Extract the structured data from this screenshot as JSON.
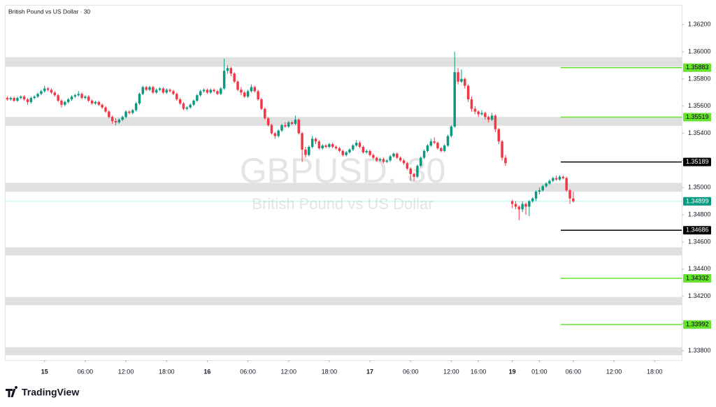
{
  "chart_data": {
    "type": "candlestick",
    "title": "British Pound vs US Dollar · 30",
    "watermark": "GBPUSD, 30",
    "watermark_subtitle": "British Pound vs US Dollar",
    "brand": "TradingView",
    "up_color": "#089981",
    "down_color": "#f23645",
    "ylim": [
      1.3373,
      1.3634
    ],
    "yticks": [
      {
        "value": 1.362,
        "label": "1.36200"
      },
      {
        "value": 1.36,
        "label": "1.36000"
      },
      {
        "value": 1.358,
        "label": "1.35800"
      },
      {
        "value": 1.356,
        "label": "1.35600"
      },
      {
        "value": 1.354,
        "label": "1.35400"
      },
      {
        "value": 1.352,
        "label": "1.35200"
      },
      {
        "value": 1.35,
        "label": "1.35000"
      },
      {
        "value": 1.348,
        "label": "1.34800"
      },
      {
        "value": 1.346,
        "label": "1.34600"
      },
      {
        "value": 1.344,
        "label": "1.34400"
      },
      {
        "value": 1.342,
        "label": "1.34200"
      },
      {
        "value": 1.34,
        "label": "1.34000"
      },
      {
        "value": 1.338,
        "label": "1.33800"
      }
    ],
    "xlim": [
      -0.5,
      199
    ],
    "xticks": [
      {
        "value": 11,
        "label": "15"
      },
      {
        "value": 23,
        "label": "06:00"
      },
      {
        "value": 35,
        "label": "12:00"
      },
      {
        "value": 47,
        "label": "18:00"
      },
      {
        "value": 59,
        "label": "16"
      },
      {
        "value": 71,
        "label": "06:00"
      },
      {
        "value": 83,
        "label": "12:00"
      },
      {
        "value": 95,
        "label": "18:00"
      },
      {
        "value": 107,
        "label": "17"
      },
      {
        "value": 119,
        "label": "06:00"
      },
      {
        "value": 131,
        "label": "12:00"
      },
      {
        "value": 139,
        "label": "16:00"
      },
      {
        "value": 149,
        "label": "19"
      },
      {
        "value": 157,
        "label": "01:00"
      },
      {
        "value": 167,
        "label": "06:00"
      },
      {
        "value": 179,
        "label": "12:00"
      },
      {
        "value": 191,
        "label": "18:00"
      }
    ],
    "zones": [
      [
        1.3596,
        1.3589
      ],
      [
        1.3552,
        1.35455
      ],
      [
        1.35035,
        1.3497
      ],
      [
        1.3456,
        1.345
      ],
      [
        1.34195,
        1.34135
      ],
      [
        1.33825,
        1.33765
      ]
    ],
    "zone_color": "#e0e0e0",
    "levels": [
      {
        "value": 1.35883,
        "color": "#66e22f"
      },
      {
        "value": 1.35519,
        "color": "#66e22f"
      },
      {
        "value": 1.35189,
        "color": "#000000"
      },
      {
        "value": 1.34686,
        "color": "#000000"
      },
      {
        "value": 1.34332,
        "color": "#66e22f"
      },
      {
        "value": 1.33992,
        "color": "#66e22f"
      }
    ],
    "last_price": 1.34899,
    "candles": [
      [
        1.3566,
        1.3567,
        1.3564,
        1.3565
      ],
      [
        1.3565,
        1.3567,
        1.3564,
        1.3566
      ],
      [
        1.3566,
        1.3567,
        1.3563,
        1.3564
      ],
      [
        1.3564,
        1.3567,
        1.3563,
        1.3566
      ],
      [
        1.3566,
        1.3568,
        1.3565,
        1.3567
      ],
      [
        1.3567,
        1.3568,
        1.3564,
        1.3565
      ],
      [
        1.3565,
        1.3566,
        1.3561,
        1.3563
      ],
      [
        1.3563,
        1.3567,
        1.3562,
        1.3566
      ],
      [
        1.3566,
        1.3568,
        1.3565,
        1.3567
      ],
      [
        1.3567,
        1.357,
        1.3566,
        1.3569
      ],
      [
        1.3569,
        1.3572,
        1.3568,
        1.3571
      ],
      [
        1.3571,
        1.3575,
        1.357,
        1.3573
      ],
      [
        1.3573,
        1.3574,
        1.3571,
        1.3572
      ],
      [
        1.3572,
        1.3573,
        1.3569,
        1.357
      ],
      [
        1.357,
        1.3571,
        1.3567,
        1.3568
      ],
      [
        1.3568,
        1.3569,
        1.3563,
        1.3564
      ],
      [
        1.3564,
        1.3565,
        1.3559,
        1.3561
      ],
      [
        1.3561,
        1.3564,
        1.356,
        1.3563
      ],
      [
        1.3563,
        1.3566,
        1.3562,
        1.3565
      ],
      [
        1.3565,
        1.3568,
        1.3564,
        1.3567
      ],
      [
        1.3567,
        1.3569,
        1.3566,
        1.3568
      ],
      [
        1.3568,
        1.3571,
        1.3567,
        1.3569
      ],
      [
        1.3569,
        1.357,
        1.3565,
        1.3566
      ],
      [
        1.3566,
        1.3568,
        1.3565,
        1.3567
      ],
      [
        1.3567,
        1.3568,
        1.3563,
        1.3564
      ],
      [
        1.3564,
        1.3565,
        1.3561,
        1.3562
      ],
      [
        1.3562,
        1.3564,
        1.3561,
        1.3563
      ],
      [
        1.3563,
        1.3564,
        1.356,
        1.3561
      ],
      [
        1.3561,
        1.3562,
        1.3558,
        1.3559
      ],
      [
        1.3559,
        1.356,
        1.3555,
        1.3556
      ],
      [
        1.3556,
        1.3557,
        1.3551,
        1.3552
      ],
      [
        1.3552,
        1.3553,
        1.3547,
        1.3549
      ],
      [
        1.3549,
        1.3551,
        1.3546,
        1.3548
      ],
      [
        1.3548,
        1.3551,
        1.3547,
        1.355
      ],
      [
        1.355,
        1.3553,
        1.3549,
        1.3552
      ],
      [
        1.3552,
        1.3557,
        1.3551,
        1.3556
      ],
      [
        1.3556,
        1.3557,
        1.3554,
        1.3555
      ],
      [
        1.3555,
        1.3558,
        1.3554,
        1.3557
      ],
      [
        1.3557,
        1.3563,
        1.3556,
        1.3562
      ],
      [
        1.3562,
        1.357,
        1.3561,
        1.3569
      ],
      [
        1.3569,
        1.3575,
        1.3568,
        1.3574
      ],
      [
        1.3574,
        1.3575,
        1.3571,
        1.3572
      ],
      [
        1.3572,
        1.3575,
        1.3571,
        1.3574
      ],
      [
        1.3574,
        1.3575,
        1.3569,
        1.357
      ],
      [
        1.357,
        1.3573,
        1.3569,
        1.3572
      ],
      [
        1.3572,
        1.3574,
        1.3571,
        1.3573
      ],
      [
        1.3573,
        1.3574,
        1.3569,
        1.357
      ],
      [
        1.357,
        1.3573,
        1.3569,
        1.3572
      ],
      [
        1.3572,
        1.3573,
        1.357,
        1.3571
      ],
      [
        1.3571,
        1.3572,
        1.3568,
        1.3569
      ],
      [
        1.3569,
        1.357,
        1.3564,
        1.3565
      ],
      [
        1.3565,
        1.3566,
        1.3561,
        1.3562
      ],
      [
        1.3562,
        1.3563,
        1.3557,
        1.3558
      ],
      [
        1.3558,
        1.356,
        1.3557,
        1.3559
      ],
      [
        1.3559,
        1.3562,
        1.3558,
        1.3561
      ],
      [
        1.3561,
        1.3565,
        1.356,
        1.3564
      ],
      [
        1.3564,
        1.3569,
        1.3563,
        1.3568
      ],
      [
        1.3568,
        1.3572,
        1.3567,
        1.3571
      ],
      [
        1.3571,
        1.3573,
        1.357,
        1.3572
      ],
      [
        1.3572,
        1.3573,
        1.3569,
        1.357
      ],
      [
        1.357,
        1.3573,
        1.3569,
        1.3572
      ],
      [
        1.3572,
        1.3573,
        1.357,
        1.3571
      ],
      [
        1.3571,
        1.3572,
        1.3568,
        1.3569
      ],
      [
        1.3569,
        1.3574,
        1.3568,
        1.3573
      ],
      [
        1.3573,
        1.3595,
        1.3572,
        1.3586
      ],
      [
        1.3586,
        1.359,
        1.3584,
        1.3588
      ],
      [
        1.3588,
        1.3589,
        1.3582,
        1.3584
      ],
      [
        1.3584,
        1.3585,
        1.3577,
        1.3578
      ],
      [
        1.3578,
        1.3579,
        1.3571,
        1.3572
      ],
      [
        1.3572,
        1.3574,
        1.3568,
        1.357
      ],
      [
        1.357,
        1.3571,
        1.3566,
        1.3567
      ],
      [
        1.3567,
        1.3572,
        1.3566,
        1.3571
      ],
      [
        1.3571,
        1.3576,
        1.357,
        1.3574
      ],
      [
        1.3574,
        1.3575,
        1.357,
        1.3571
      ],
      [
        1.3571,
        1.3572,
        1.3564,
        1.3565
      ],
      [
        1.3565,
        1.3566,
        1.3557,
        1.3558
      ],
      [
        1.3558,
        1.3559,
        1.355,
        1.3551
      ],
      [
        1.3551,
        1.3552,
        1.3545,
        1.3546
      ],
      [
        1.3546,
        1.3547,
        1.3539,
        1.354
      ],
      [
        1.354,
        1.3541,
        1.3536,
        1.3538
      ],
      [
        1.3538,
        1.3543,
        1.3537,
        1.3542
      ],
      [
        1.3542,
        1.3547,
        1.3541,
        1.3546
      ],
      [
        1.3546,
        1.3548,
        1.3544,
        1.3545
      ],
      [
        1.3545,
        1.3549,
        1.3544,
        1.3548
      ],
      [
        1.3548,
        1.3549,
        1.3546,
        1.3547
      ],
      [
        1.3547,
        1.3553,
        1.3546,
        1.355
      ],
      [
        1.355,
        1.3551,
        1.3539,
        1.354
      ],
      [
        1.354,
        1.3541,
        1.3519,
        1.3528
      ],
      [
        1.3528,
        1.353,
        1.3522,
        1.3524
      ],
      [
        1.3524,
        1.3531,
        1.3523,
        1.353
      ],
      [
        1.353,
        1.3538,
        1.3529,
        1.3536
      ],
      [
        1.3536,
        1.3537,
        1.3532,
        1.3534
      ],
      [
        1.3534,
        1.3535,
        1.3528,
        1.3529
      ],
      [
        1.3529,
        1.3532,
        1.3528,
        1.3531
      ],
      [
        1.3531,
        1.3532,
        1.3529,
        1.353
      ],
      [
        1.353,
        1.3533,
        1.3529,
        1.3532
      ],
      [
        1.3532,
        1.3533,
        1.3529,
        1.353
      ],
      [
        1.353,
        1.3531,
        1.3528,
        1.3529
      ],
      [
        1.3529,
        1.353,
        1.3526,
        1.3527
      ],
      [
        1.3527,
        1.3528,
        1.3523,
        1.3524
      ],
      [
        1.3524,
        1.3527,
        1.3523,
        1.3526
      ],
      [
        1.3526,
        1.3529,
        1.3525,
        1.3528
      ],
      [
        1.3528,
        1.3532,
        1.3527,
        1.3531
      ],
      [
        1.3531,
        1.3535,
        1.353,
        1.3533
      ],
      [
        1.3533,
        1.3534,
        1.3529,
        1.353
      ],
      [
        1.353,
        1.3531,
        1.3525,
        1.3526
      ],
      [
        1.3526,
        1.3528,
        1.3525,
        1.3527
      ],
      [
        1.3527,
        1.3528,
        1.3523,
        1.3524
      ],
      [
        1.3524,
        1.3525,
        1.3521,
        1.3522
      ],
      [
        1.3522,
        1.3523,
        1.3519,
        1.352
      ],
      [
        1.352,
        1.3522,
        1.3519,
        1.3521
      ],
      [
        1.3521,
        1.3522,
        1.3518,
        1.3519
      ],
      [
        1.3519,
        1.3521,
        1.3518,
        1.352
      ],
      [
        1.352,
        1.3524,
        1.3519,
        1.3523
      ],
      [
        1.3523,
        1.3526,
        1.3522,
        1.3525
      ],
      [
        1.3525,
        1.3526,
        1.3521,
        1.3522
      ],
      [
        1.3522,
        1.3523,
        1.3519,
        1.352
      ],
      [
        1.352,
        1.3521,
        1.3517,
        1.3518
      ],
      [
        1.3518,
        1.3519,
        1.3513,
        1.3514
      ],
      [
        1.3514,
        1.3515,
        1.3505,
        1.351
      ],
      [
        1.351,
        1.3511,
        1.3505,
        1.3508
      ],
      [
        1.3508,
        1.3517,
        1.3507,
        1.3516
      ],
      [
        1.3516,
        1.3523,
        1.3515,
        1.3522
      ],
      [
        1.3522,
        1.3528,
        1.3521,
        1.3527
      ],
      [
        1.3527,
        1.3532,
        1.3526,
        1.3531
      ],
      [
        1.3531,
        1.3536,
        1.353,
        1.3534
      ],
      [
        1.3534,
        1.3537,
        1.3532,
        1.3533
      ],
      [
        1.3533,
        1.3534,
        1.3528,
        1.3529
      ],
      [
        1.3529,
        1.353,
        1.3526,
        1.3527
      ],
      [
        1.3527,
        1.3532,
        1.3526,
        1.3531
      ],
      [
        1.3531,
        1.3539,
        1.353,
        1.3538
      ],
      [
        1.3538,
        1.3546,
        1.3537,
        1.3545
      ],
      [
        1.3545,
        1.36,
        1.3544,
        1.3585
      ],
      [
        1.3585,
        1.3588,
        1.3576,
        1.3578
      ],
      [
        1.3578,
        1.3587,
        1.3577,
        1.358
      ],
      [
        1.358,
        1.3581,
        1.3573,
        1.3575
      ],
      [
        1.3575,
        1.3576,
        1.3563,
        1.3565
      ],
      [
        1.3565,
        1.3567,
        1.3556,
        1.3558
      ],
      [
        1.3558,
        1.356,
        1.3554,
        1.3556
      ],
      [
        1.3556,
        1.3557,
        1.3552,
        1.3554
      ],
      [
        1.3554,
        1.3557,
        1.3553,
        1.3555
      ],
      [
        1.3555,
        1.3556,
        1.355,
        1.3552
      ],
      [
        1.3552,
        1.3553,
        1.3548,
        1.355
      ],
      [
        1.355,
        1.3555,
        1.3549,
        1.3553
      ],
      [
        1.3553,
        1.3554,
        1.3541,
        1.3543
      ],
      [
        1.3543,
        1.3544,
        1.3532,
        1.3534
      ],
      [
        1.3534,
        1.3535,
        1.352,
        1.3522
      ],
      [
        1.3522,
        1.3524,
        1.3516,
        1.3518
      ],
      null,
      [
        1.349,
        1.3491,
        1.3485,
        1.3488
      ],
      [
        1.3488,
        1.349,
        1.3484,
        1.3486
      ],
      [
        1.3486,
        1.3487,
        1.3476,
        1.3484
      ],
      [
        1.3484,
        1.349,
        1.3482,
        1.3488
      ],
      [
        1.3488,
        1.3489,
        1.348,
        1.3486
      ],
      [
        1.3486,
        1.3491,
        1.3479,
        1.349
      ],
      [
        1.349,
        1.3493,
        1.3489,
        1.3492
      ],
      [
        1.3492,
        1.3498,
        1.349,
        1.3497
      ],
      [
        1.3497,
        1.35,
        1.3495,
        1.3498
      ],
      [
        1.3498,
        1.3502,
        1.3497,
        1.3501
      ],
      [
        1.3501,
        1.3504,
        1.35,
        1.3503
      ],
      [
        1.3503,
        1.3506,
        1.3502,
        1.3505
      ],
      [
        1.3505,
        1.3508,
        1.3504,
        1.3507
      ],
      [
        1.3507,
        1.3509,
        1.3505,
        1.3506
      ],
      [
        1.3506,
        1.3509,
        1.3505,
        1.3508
      ],
      [
        1.3508,
        1.3509,
        1.3506,
        1.3507
      ],
      [
        1.3507,
        1.3508,
        1.3497,
        1.3498
      ],
      [
        1.3498,
        1.3499,
        1.3488,
        1.3492
      ],
      [
        1.3492,
        1.3497,
        1.3489,
        1.349
      ]
    ]
  }
}
